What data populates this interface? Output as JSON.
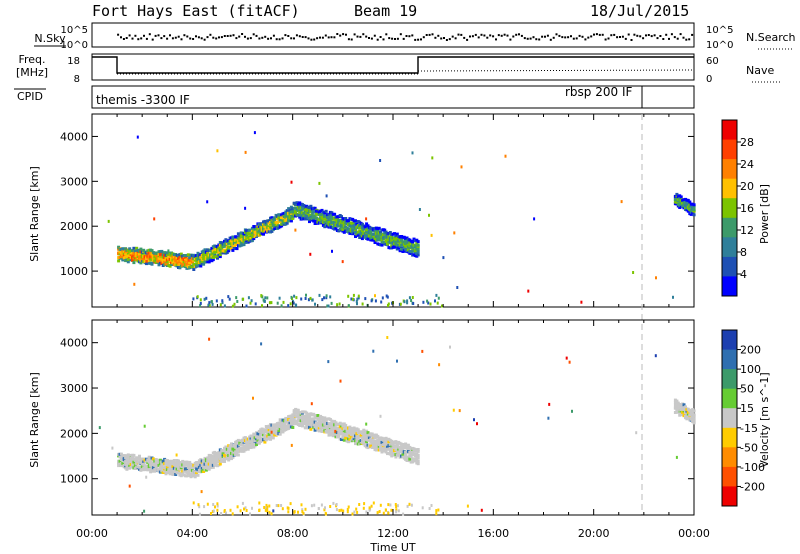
{
  "header": {
    "radar": "Fort Hays East (fitACF)",
    "beam": "Beam 19",
    "date": "18/Jul/2015"
  },
  "top_panels": {
    "nsky_label": "N.Sky",
    "nsky_ticks": [
      "10^5",
      "10^0"
    ],
    "nsearch_label": "N.Search",
    "nsearch_ticks": [
      "10^5",
      "10^0"
    ],
    "freq_label": "Freq.",
    "freq_unit": "[MHz]",
    "freq_ticks": [
      "18",
      "8"
    ],
    "nave_label": "Nave",
    "nave_ticks": [
      "60",
      "0"
    ],
    "cpid_label": "CPID",
    "cpid_modes": [
      {
        "label": "themis -3300 IF",
        "start_hour": 0.1
      },
      {
        "label": "rbsp 200 IF",
        "start_hour": 22.0
      }
    ]
  },
  "chart_data": [
    {
      "type": "heatmap",
      "name": "power",
      "ylabel": "Slant Range [km]",
      "xlabel": "",
      "ylim": [
        200,
        4500
      ],
      "xlim_hours": [
        0,
        24
      ],
      "yticks": [
        1000,
        2000,
        3000,
        4000
      ],
      "colorbar": {
        "label": "Power [dB]",
        "range": [
          0,
          32
        ],
        "ticks": [
          "4",
          "8",
          "12",
          "16",
          "20",
          "24",
          "28"
        ],
        "colors": [
          "#0000ff",
          "#1e50b4",
          "#2f7f9a",
          "#3c9a6a",
          "#7cc400",
          "#ffc000",
          "#ff8000",
          "#ff4000",
          "#ee0000"
        ]
      },
      "bands": [
        {
          "t0": 1.0,
          "t1": 4.0,
          "r_from": [
            1450,
            1250
          ],
          "width": 300,
          "value": 22
        },
        {
          "t0": 4.0,
          "t1": 8.0,
          "r_from": [
            1250,
            2350
          ],
          "width": 300,
          "value": 16
        },
        {
          "t0": 8.0,
          "t1": 13.0,
          "r_from": [
            2450,
            1550
          ],
          "width": 350,
          "value": 12
        },
        {
          "t0": 23.2,
          "t1": 24.0,
          "r_from": [
            2650,
            2400
          ],
          "width": 250,
          "value": 12
        }
      ]
    },
    {
      "type": "heatmap",
      "name": "velocity",
      "ylabel": "Slant Range [km]",
      "xlabel": "Time UT",
      "ylim": [
        200,
        4500
      ],
      "xlim_hours": [
        0,
        24
      ],
      "yticks": [
        1000,
        2000,
        3000,
        4000
      ],
      "xticks": [
        "00:00",
        "04:00",
        "08:00",
        "12:00",
        "16:00",
        "20:00",
        "00:00"
      ],
      "colorbar": {
        "label": "Velocity [m s^-1]",
        "ticks": [
          "200",
          "100",
          "50",
          "15",
          "-15",
          "-50",
          "-100",
          "-200"
        ],
        "colors": [
          "#1c3fb0",
          "#2f6fb0",
          "#3c9a6a",
          "#66cc33",
          "#c8c8c8",
          "#ffcc00",
          "#ff8c00",
          "#ff5000",
          "#ee0000"
        ]
      },
      "bands": [
        {
          "t0": 1.0,
          "t1": 4.0,
          "r_from": [
            1450,
            1250
          ],
          "width": 300,
          "value": 0
        },
        {
          "t0": 4.0,
          "t1": 8.0,
          "r_from": [
            1250,
            2350
          ],
          "width": 300,
          "value": 0
        },
        {
          "t0": 8.0,
          "t1": 13.0,
          "r_from": [
            2450,
            1550
          ],
          "width": 350,
          "value": 0
        },
        {
          "t0": 23.2,
          "t1": 24.0,
          "r_from": [
            2650,
            2400
          ],
          "width": 250,
          "value": 0
        }
      ]
    }
  ]
}
